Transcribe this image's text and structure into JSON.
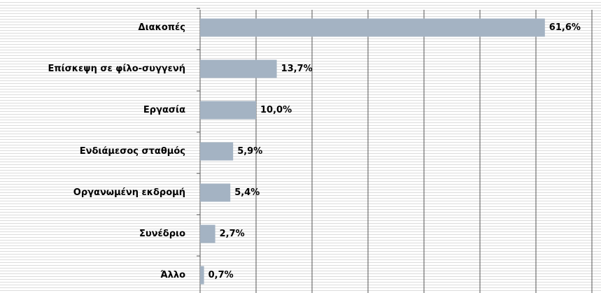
{
  "chart_data": {
    "type": "bar",
    "orientation": "horizontal",
    "categories": [
      "Διακοπές",
      "Επίσκεψη σε φίλο-συγγενή",
      "Εργασία",
      "Ενδιάμεσος σταθμός",
      "Οργανωμένη εκδρομή",
      "Συνέδριο",
      "Άλλο"
    ],
    "values": [
      61.6,
      13.7,
      10.0,
      5.9,
      5.4,
      2.7,
      0.7
    ],
    "value_labels": [
      "61,6%",
      "13,7%",
      "10,0%",
      "5,9%",
      "5,4%",
      "2,7%",
      "0,7%"
    ],
    "color": "#a4b3c3",
    "xlim": [
      0,
      70
    ],
    "xticks": [
      0,
      10,
      20,
      30,
      40,
      50,
      60,
      70
    ],
    "grid": true
  }
}
